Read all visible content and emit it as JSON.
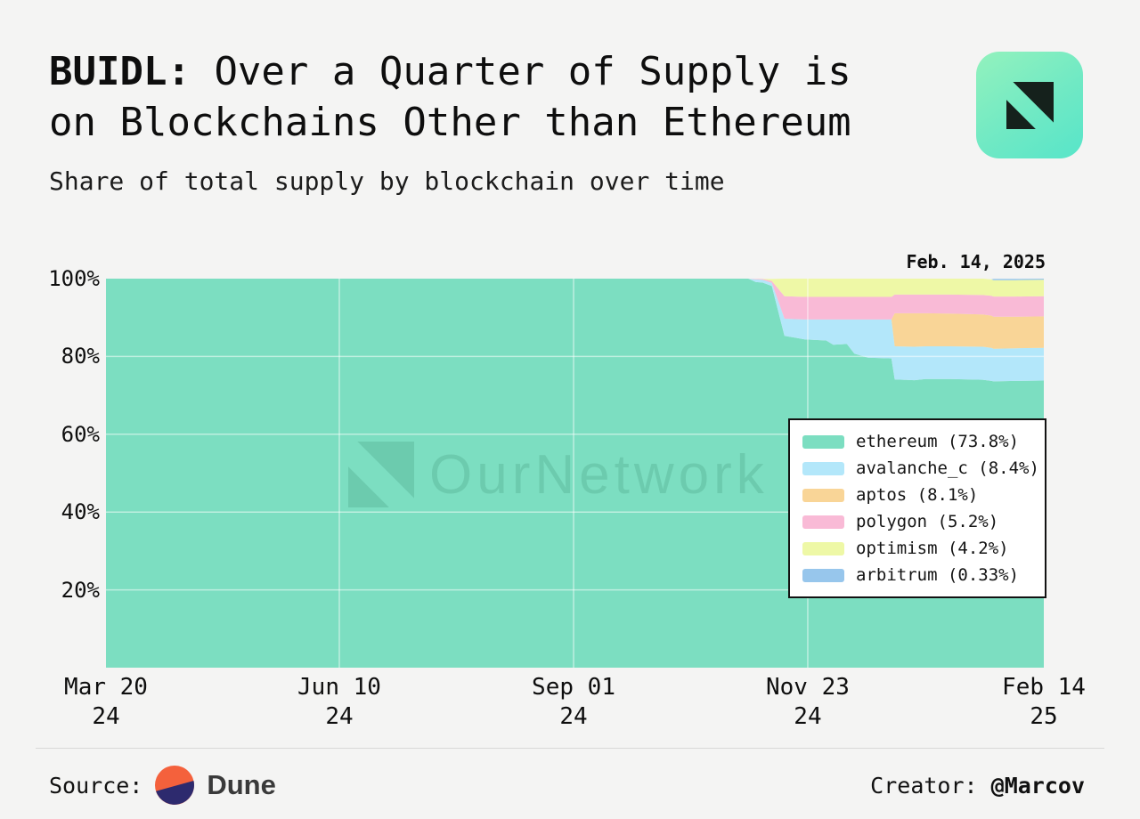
{
  "header": {
    "title": {
      "prefix": "BUIDL:",
      "line1": " Over a Quarter of Supply is",
      "line2": "on Blockchains Other than Ethereum"
    },
    "subtitle": "Share of total supply by blockchain over time",
    "logo_icon": "ournetwork-logo",
    "logo_gradient": [
      "#93F2BD",
      "#57E5C9"
    ]
  },
  "chart": {
    "date_label": "Feb. 14, 2025",
    "watermark_text": "OurNetwork",
    "y_ticks": [
      {
        "label": "100%",
        "value": 100
      },
      {
        "label": "80%",
        "value": 80
      },
      {
        "label": "60%",
        "value": 60
      },
      {
        "label": "40%",
        "value": 40
      },
      {
        "label": "20%",
        "value": 20
      }
    ],
    "x_ticks": [
      {
        "line1": "Mar 20",
        "line2": "24",
        "frac": 0
      },
      {
        "line1": "Jun 10",
        "line2": "24",
        "frac": 0.2488
      },
      {
        "line1": "Sep 01",
        "line2": "24",
        "frac": 0.4986
      },
      {
        "line1": "Nov 23",
        "line2": "24",
        "frac": 0.7483
      },
      {
        "line1": "Feb 14",
        "line2": "25",
        "frac": 1.0
      }
    ],
    "legend": [
      {
        "label": "ethereum (73.8%)",
        "color": "#7CDEC1"
      },
      {
        "label": "avalanche_c (8.4%)",
        "color": "#B3E7FA"
      },
      {
        "label": "aptos (8.1%)",
        "color": "#F9D597"
      },
      {
        "label": "polygon (5.2%)",
        "color": "#F9BAD6"
      },
      {
        "label": "optimism (4.2%)",
        "color": "#EEF8A6"
      },
      {
        "label": "arbitrum (0.33%)",
        "color": "#97C6EC"
      }
    ]
  },
  "chart_data": {
    "type": "area",
    "stacked": true,
    "title": "Share of total supply by blockchain over time",
    "x_axis": "Date (Mar 20 2024 to Feb 14 2025), x given as fraction of range",
    "y_axis": "Share of total supply (%)",
    "ylim": [
      0,
      100
    ],
    "grid_y": [
      80,
      60,
      40,
      20
    ],
    "legend_position": "bottom-right",
    "end_date_values": {
      "ethereum": 73.8,
      "avalanche_c": 8.4,
      "aptos": 8.1,
      "polygon": 5.2,
      "optimism": 4.2,
      "arbitrum": 0.33
    },
    "x": [
      0,
      0.6,
      0.685,
      0.693,
      0.7,
      0.71,
      0.7235,
      0.745,
      0.768,
      0.7755,
      0.79,
      0.798,
      0.8125,
      0.8375,
      0.841,
      0.862,
      0.874,
      0.9,
      0.935,
      0.944,
      0.9465,
      0.97,
      1.0
    ],
    "series": [
      {
        "name": "ethereum",
        "color": "#7CDEC1",
        "values": [
          100,
          100,
          100,
          99.1,
          99.0,
          98.1,
          85.3,
          84.4,
          84.1,
          83.0,
          83.2,
          80.7,
          79.7,
          79.5,
          74.1,
          73.9,
          74.2,
          74.2,
          74.0,
          73.7,
          73.6,
          73.7,
          73.8
        ]
      },
      {
        "name": "avalanche_c",
        "color": "#B3E7FA",
        "values": [
          0,
          0,
          0,
          0.7,
          0.7,
          0.8,
          4.4,
          5.1,
          5.4,
          6.5,
          6.3,
          8.8,
          9.8,
          10.0,
          8.5,
          8.6,
          8.4,
          8.4,
          8.5,
          8.5,
          8.4,
          8.4,
          8.4
        ]
      },
      {
        "name": "aptos",
        "color": "#F9D597",
        "values": [
          0,
          0,
          0,
          0,
          0,
          0,
          0,
          0,
          0,
          0,
          0,
          0,
          0,
          0,
          8.5,
          8.6,
          8.5,
          8.4,
          8.3,
          8.3,
          8.2,
          8.1,
          8.1
        ]
      },
      {
        "name": "polygon",
        "color": "#F9BAD6",
        "values": [
          0,
          0,
          0,
          0.15,
          0.2,
          0.5,
          5.8,
          5.8,
          5.8,
          5.8,
          5.8,
          5.8,
          5.8,
          5.8,
          4.8,
          4.8,
          4.8,
          4.9,
          5.0,
          5.1,
          5.2,
          5.2,
          5.2
        ]
      },
      {
        "name": "optimism",
        "color": "#EEF8A6",
        "values": [
          0,
          0,
          0,
          0,
          0.05,
          0.5,
          4.5,
          4.7,
          4.7,
          4.7,
          4.7,
          4.7,
          4.7,
          4.7,
          4.1,
          4.1,
          4.1,
          4.1,
          4.2,
          4.2,
          4.2,
          4.2,
          4.2
        ]
      },
      {
        "name": "arbitrum",
        "color": "#97C6EC",
        "values": [
          0,
          0,
          0,
          0,
          0,
          0,
          0,
          0,
          0,
          0,
          0,
          0,
          0,
          0,
          0,
          0,
          0,
          0,
          0,
          0,
          0.33,
          0.33,
          0.33
        ]
      }
    ]
  },
  "footer": {
    "source_label": "Source:",
    "source_name": "Dune",
    "source_icon": "dune-logo",
    "creator_label": "Creator: ",
    "creator_handle": "@Marcov"
  }
}
